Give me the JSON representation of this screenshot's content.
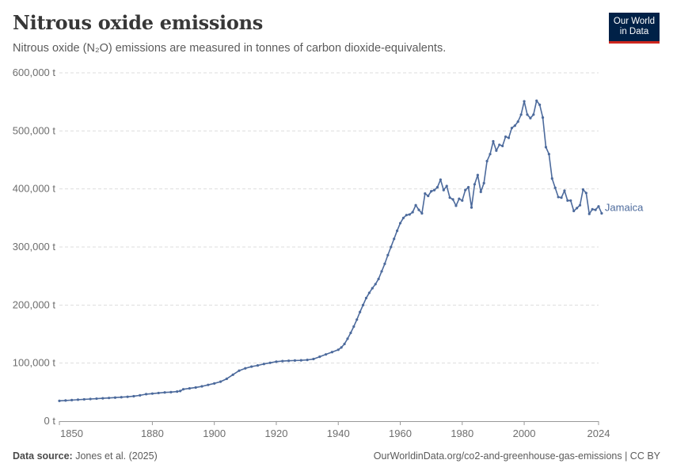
{
  "header": {
    "title": "Nitrous oxide emissions",
    "subtitle": "Nitrous oxide (N₂O) emissions are measured in tonnes of carbon dioxide-equivalents."
  },
  "logo": {
    "line1": "Our World",
    "line2": "in Data",
    "bg_color": "#002147",
    "accent_color": "#ce261e"
  },
  "footer": {
    "source_label": "Data source:",
    "source_value": "Jones et al. (2025)",
    "url": "OurWorldinData.org/co2-and-greenhouse-gas-emissions | CC BY"
  },
  "colors": {
    "series": "#4c6a9c",
    "grid": "#dddddd",
    "axis": "#999999"
  },
  "chart_data": {
    "type": "line",
    "title": "Nitrous oxide emissions",
    "xlim": [
      1850,
      2024
    ],
    "ylim": [
      0,
      600000
    ],
    "grid": "horizontal dashed",
    "yticks": [
      {
        "value": 0,
        "label": "0 t"
      },
      {
        "value": 100000,
        "label": "100,000 t"
      },
      {
        "value": 200000,
        "label": "200,000 t"
      },
      {
        "value": 300000,
        "label": "300,000 t"
      },
      {
        "value": 400000,
        "label": "400,000 t"
      },
      {
        "value": 500000,
        "label": "500,000 t"
      },
      {
        "value": 600000,
        "label": "600,000 t"
      }
    ],
    "xticks": [
      {
        "value": 1850,
        "label": "1850"
      },
      {
        "value": 1880,
        "label": "1880"
      },
      {
        "value": 1900,
        "label": "1900"
      },
      {
        "value": 1920,
        "label": "1920"
      },
      {
        "value": 1940,
        "label": "1940"
      },
      {
        "value": 1960,
        "label": "1960"
      },
      {
        "value": 1980,
        "label": "1980"
      },
      {
        "value": 2000,
        "label": "2000"
      },
      {
        "value": 2024,
        "label": "2024"
      }
    ],
    "series": [
      {
        "name": "Jamaica",
        "color": "#4c6a9c",
        "points": [
          [
            1850,
            35000
          ],
          [
            1852,
            35600
          ],
          [
            1854,
            36300
          ],
          [
            1856,
            37000
          ],
          [
            1858,
            37600
          ],
          [
            1860,
            38200
          ],
          [
            1862,
            38800
          ],
          [
            1864,
            39400
          ],
          [
            1866,
            40000
          ],
          [
            1868,
            40600
          ],
          [
            1870,
            41300
          ],
          [
            1872,
            42000
          ],
          [
            1874,
            43000
          ],
          [
            1876,
            44500
          ],
          [
            1878,
            46500
          ],
          [
            1880,
            47500
          ],
          [
            1882,
            48500
          ],
          [
            1884,
            49500
          ],
          [
            1886,
            50000
          ],
          [
            1888,
            51000
          ],
          [
            1889,
            52000
          ],
          [
            1890,
            55000
          ],
          [
            1892,
            56500
          ],
          [
            1894,
            58000
          ],
          [
            1896,
            60000
          ],
          [
            1898,
            62500
          ],
          [
            1900,
            65000
          ],
          [
            1902,
            68000
          ],
          [
            1904,
            73000
          ],
          [
            1906,
            80000
          ],
          [
            1908,
            87000
          ],
          [
            1910,
            91000
          ],
          [
            1912,
            94000
          ],
          [
            1914,
            96000
          ],
          [
            1916,
            98500
          ],
          [
            1918,
            100500
          ],
          [
            1920,
            102500
          ],
          [
            1922,
            103500
          ],
          [
            1924,
            104000
          ],
          [
            1926,
            104500
          ],
          [
            1928,
            104800
          ],
          [
            1930,
            105500
          ],
          [
            1932,
            107000
          ],
          [
            1934,
            111000
          ],
          [
            1936,
            115000
          ],
          [
            1938,
            119000
          ],
          [
            1940,
            123000
          ],
          [
            1941,
            127000
          ],
          [
            1942,
            133000
          ],
          [
            1943,
            142000
          ],
          [
            1944,
            152000
          ],
          [
            1945,
            163000
          ],
          [
            1946,
            175000
          ],
          [
            1947,
            188000
          ],
          [
            1948,
            200000
          ],
          [
            1949,
            212000
          ],
          [
            1950,
            221000
          ],
          [
            1951,
            229000
          ],
          [
            1952,
            236000
          ],
          [
            1953,
            245000
          ],
          [
            1954,
            258000
          ],
          [
            1955,
            271000
          ],
          [
            1956,
            286000
          ],
          [
            1957,
            300000
          ],
          [
            1958,
            314000
          ],
          [
            1959,
            328000
          ],
          [
            1960,
            341000
          ],
          [
            1961,
            350000
          ],
          [
            1962,
            355000
          ],
          [
            1963,
            356000
          ],
          [
            1964,
            360000
          ],
          [
            1965,
            372000
          ],
          [
            1966,
            364000
          ],
          [
            1967,
            358000
          ],
          [
            1968,
            392000
          ],
          [
            1969,
            388000
          ],
          [
            1970,
            396000
          ],
          [
            1971,
            398000
          ],
          [
            1972,
            403000
          ],
          [
            1973,
            416000
          ],
          [
            1974,
            398000
          ],
          [
            1975,
            405000
          ],
          [
            1976,
            385000
          ],
          [
            1977,
            382000
          ],
          [
            1978,
            371000
          ],
          [
            1979,
            383000
          ],
          [
            1980,
            380000
          ],
          [
            1981,
            398000
          ],
          [
            1982,
            403000
          ],
          [
            1983,
            368000
          ],
          [
            1984,
            408000
          ],
          [
            1985,
            424000
          ],
          [
            1986,
            395000
          ],
          [
            1987,
            410000
          ],
          [
            1988,
            448000
          ],
          [
            1989,
            460000
          ],
          [
            1990,
            482000
          ],
          [
            1991,
            466000
          ],
          [
            1992,
            476000
          ],
          [
            1993,
            474000
          ],
          [
            1994,
            490000
          ],
          [
            1995,
            488000
          ],
          [
            1996,
            505000
          ],
          [
            1997,
            509000
          ],
          [
            1998,
            516000
          ],
          [
            1999,
            528000
          ],
          [
            2000,
            551000
          ],
          [
            2001,
            528000
          ],
          [
            2002,
            522000
          ],
          [
            2003,
            528000
          ],
          [
            2004,
            552000
          ],
          [
            2005,
            545000
          ],
          [
            2006,
            523000
          ],
          [
            2007,
            472000
          ],
          [
            2008,
            460000
          ],
          [
            2009,
            418000
          ],
          [
            2010,
            402000
          ],
          [
            2011,
            386000
          ],
          [
            2012,
            385000
          ],
          [
            2013,
            397000
          ],
          [
            2014,
            380000
          ],
          [
            2015,
            380000
          ],
          [
            2016,
            362000
          ],
          [
            2017,
            367000
          ],
          [
            2018,
            372000
          ],
          [
            2019,
            399000
          ],
          [
            2020,
            393000
          ],
          [
            2021,
            357000
          ],
          [
            2022,
            365000
          ],
          [
            2023,
            364000
          ],
          [
            2024,
            370000
          ],
          [
            2025,
            358000
          ]
        ]
      }
    ]
  }
}
